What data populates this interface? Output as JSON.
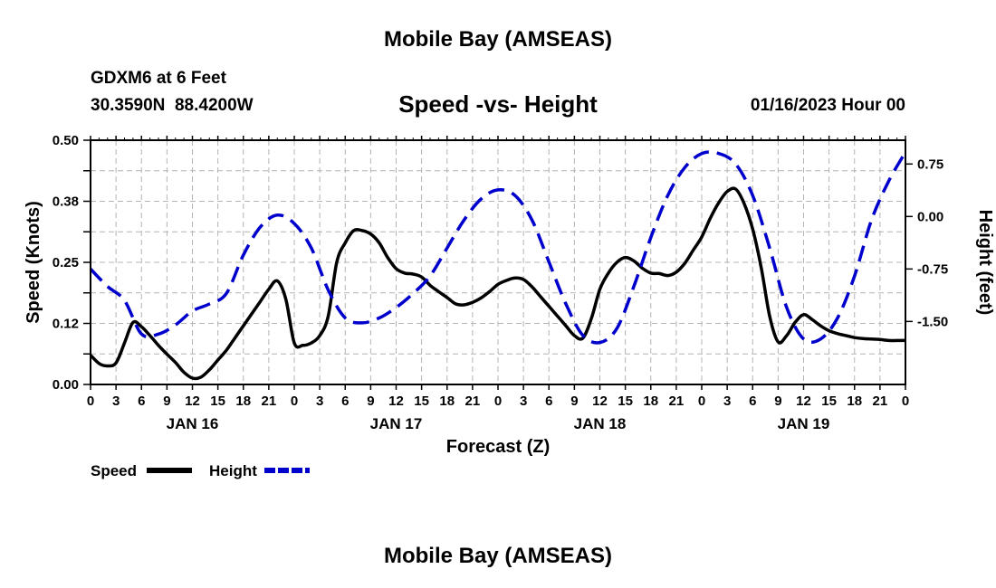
{
  "page": {
    "title": "Mobile Bay (AMSEAS)",
    "station_line": "GDXM6 at 6 Feet",
    "coords_line": "30.3590N  88.4200W",
    "datetime": "01/16/2023 Hour 00",
    "footer_title": "Mobile Bay (AMSEAS)"
  },
  "chart_data": {
    "type": "line",
    "title": "Speed -vs- Height",
    "xlabel": "Forecast (Z)",
    "ylabel_left": "Speed (Knots)",
    "ylabel_right": "Height (feet)",
    "x_unit": "hours since 01/16/2023 00Z",
    "xlim": [
      0,
      96
    ],
    "ylim_left": [
      0,
      0.5
    ],
    "ylim_right": [
      -2.4,
      1.09
    ],
    "left_ticks": [
      "0.00",
      "0.12",
      "0.25",
      "0.38",
      "0.50"
    ],
    "left_tick_values": [
      0,
      0.125,
      0.25,
      0.375,
      0.5
    ],
    "right_ticks": [
      "0.75",
      "0.00",
      "-0.75",
      "-1.50"
    ],
    "right_tick_values": [
      0.75,
      0,
      -0.75,
      -1.5
    ],
    "x_ticks": [
      "0",
      "3",
      "6",
      "9",
      "12",
      "15",
      "18",
      "21",
      "0",
      "3",
      "6",
      "9",
      "12",
      "15",
      "18",
      "21",
      "0",
      "3",
      "6",
      "9",
      "12",
      "15",
      "18",
      "21",
      "0",
      "3",
      "6",
      "9",
      "12",
      "15",
      "18",
      "21",
      "0"
    ],
    "date_labels": [
      {
        "label": "JAN 16",
        "x": 12
      },
      {
        "label": "JAN 17",
        "x": 36
      },
      {
        "label": "JAN 18",
        "x": 60
      },
      {
        "label": "JAN 19",
        "x": 84
      }
    ],
    "grid": true,
    "series": [
      {
        "name": "Speed",
        "axis": "left",
        "color": "#000000",
        "dash": "solid",
        "x": [
          0,
          1,
          2,
          3,
          4,
          5,
          6,
          7,
          8,
          9,
          10,
          11,
          12,
          13,
          14,
          15,
          16,
          17,
          18,
          19,
          20,
          21,
          22,
          23,
          24,
          25,
          26,
          27,
          28,
          29,
          30,
          31,
          32,
          33,
          34,
          35,
          36,
          37,
          38,
          39,
          40,
          41,
          42,
          43,
          44,
          45,
          46,
          47,
          48,
          49,
          50,
          51,
          52,
          53,
          54,
          55,
          56,
          57,
          58,
          59,
          60,
          61,
          62,
          63,
          64,
          65,
          66,
          67,
          68,
          69,
          70,
          71,
          72,
          73,
          74,
          75,
          76,
          77,
          78,
          79,
          80,
          81,
          82,
          83,
          84,
          85,
          86,
          87,
          88,
          89,
          90,
          91,
          92,
          93,
          94,
          95,
          96
        ],
        "values": [
          0.06,
          0.043,
          0.038,
          0.044,
          0.085,
          0.127,
          0.118,
          0.1,
          0.08,
          0.062,
          0.045,
          0.025,
          0.013,
          0.015,
          0.03,
          0.05,
          0.07,
          0.095,
          0.12,
          0.145,
          0.17,
          0.195,
          0.212,
          0.175,
          0.085,
          0.08,
          0.085,
          0.1,
          0.14,
          0.25,
          0.29,
          0.315,
          0.315,
          0.308,
          0.29,
          0.26,
          0.237,
          0.228,
          0.226,
          0.22,
          0.203,
          0.19,
          0.178,
          0.165,
          0.163,
          0.168,
          0.177,
          0.19,
          0.205,
          0.213,
          0.218,
          0.215,
          0.2,
          0.18,
          0.16,
          0.14,
          0.12,
          0.1,
          0.095,
          0.135,
          0.195,
          0.228,
          0.25,
          0.26,
          0.253,
          0.238,
          0.228,
          0.227,
          0.223,
          0.23,
          0.248,
          0.275,
          0.302,
          0.34,
          0.372,
          0.395,
          0.4,
          0.37,
          0.318,
          0.24,
          0.14,
          0.087,
          0.1,
          0.127,
          0.143,
          0.133,
          0.12,
          0.11,
          0.104,
          0.1,
          0.096,
          0.094,
          0.093,
          0.092,
          0.09,
          0.09,
          0.09
        ]
      },
      {
        "name": "Height",
        "axis": "right",
        "color": "#0000cc",
        "dash": "dashed",
        "x": [
          0,
          2,
          4,
          6,
          8,
          10,
          12,
          14,
          16,
          18,
          20,
          22,
          24,
          26,
          28,
          30,
          32,
          34,
          36,
          38,
          40,
          42,
          44,
          46,
          48,
          50,
          52,
          54,
          56,
          58,
          60,
          62,
          64,
          66,
          68,
          70,
          72,
          74,
          76,
          78,
          80,
          82,
          84,
          86,
          88,
          90,
          92,
          94,
          96
        ],
        "values": [
          -0.75,
          -1.0,
          -1.2,
          -1.68,
          -1.68,
          -1.55,
          -1.35,
          -1.25,
          -1.1,
          -0.55,
          -0.15,
          0.02,
          -0.1,
          -0.45,
          -1.05,
          -1.45,
          -1.52,
          -1.45,
          -1.3,
          -1.1,
          -0.85,
          -0.45,
          -0.05,
          0.25,
          0.38,
          0.3,
          -0.05,
          -0.65,
          -1.25,
          -1.7,
          -1.8,
          -1.6,
          -1.0,
          -0.3,
          0.3,
          0.7,
          0.9,
          0.9,
          0.75,
          0.3,
          -0.45,
          -1.3,
          -1.75,
          -1.75,
          -1.45,
          -0.85,
          -0.05,
          0.5,
          0.92
        ]
      }
    ],
    "legend": [
      {
        "name": "Speed",
        "color": "#000000",
        "dash": "solid"
      },
      {
        "name": "Height",
        "color": "#0000cc",
        "dash": "dashed"
      }
    ],
    "legend_position": "bottom-left"
  }
}
